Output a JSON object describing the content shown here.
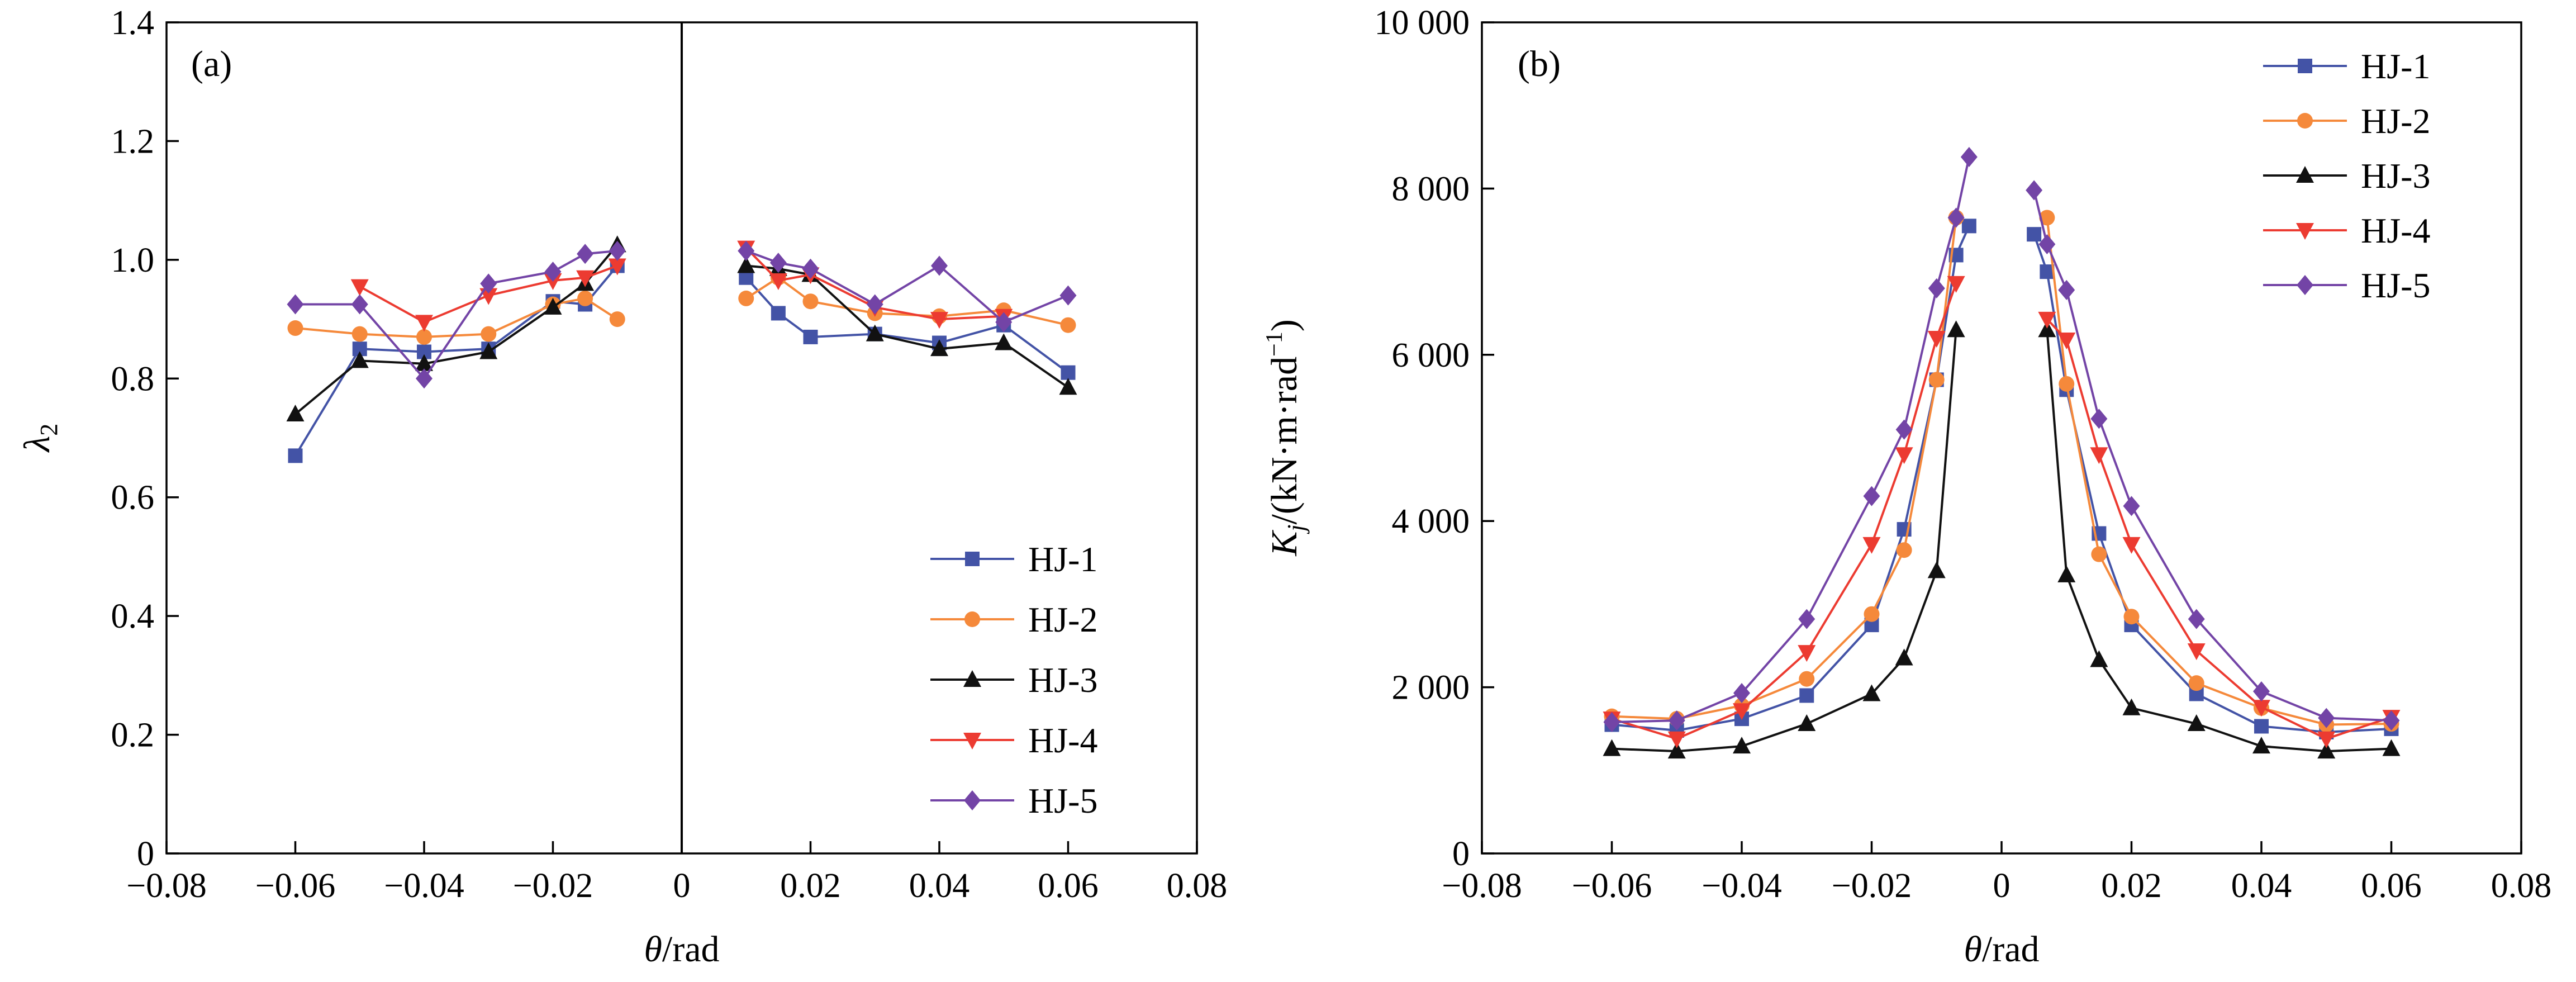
{
  "chart_data": [
    {
      "type": "line",
      "panel_label": "(a)",
      "title": "",
      "xlabel_var": "θ",
      "xlabel_unit": "/rad",
      "ylabel_var": "λ",
      "ylabel_sub": "2",
      "xlim": [
        -0.08,
        0.08
      ],
      "ylim": [
        0,
        1.4
      ],
      "xticks": [
        -0.08,
        -0.06,
        -0.04,
        -0.02,
        0,
        0.02,
        0.04,
        0.06,
        0.08
      ],
      "xtick_labels": [
        "−0.08",
        "−0.06",
        "−0.04",
        "−0.02",
        "0",
        "0.02",
        "0.04",
        "0.06",
        "0.08"
      ],
      "yticks": [
        0,
        0.2,
        0.4,
        0.6,
        0.8,
        1.0,
        1.2,
        1.4
      ],
      "ytick_labels": [
        "0",
        "0.2",
        "0.4",
        "0.6",
        "0.8",
        "1.0",
        "1.2",
        "1.4"
      ],
      "vertical_line_at": 0,
      "legend_position": "bottom-right",
      "series": [
        {
          "name": "HJ-1",
          "color": "#4353a6",
          "marker": "square",
          "neg": {
            "x": [
              -0.06,
              -0.05,
              -0.04,
              -0.03,
              -0.02,
              -0.015,
              -0.01
            ],
            "y": [
              0.67,
              0.85,
              0.845,
              0.85,
              0.93,
              0.925,
              0.99
            ]
          },
          "pos": {
            "x": [
              0.01,
              0.015,
              0.02,
              0.03,
              0.04,
              0.05,
              0.06
            ],
            "y": [
              0.97,
              0.91,
              0.87,
              0.875,
              0.86,
              0.89,
              0.81
            ]
          }
        },
        {
          "name": "HJ-2",
          "color": "#f5893b",
          "marker": "circle",
          "neg": {
            "x": [
              -0.06,
              -0.05,
              -0.04,
              -0.03,
              -0.02,
              -0.015,
              -0.01
            ],
            "y": [
              0.885,
              0.875,
              0.87,
              0.875,
              0.925,
              0.935,
              0.9
            ]
          },
          "pos": {
            "x": [
              0.01,
              0.015,
              0.02,
              0.03,
              0.04,
              0.05,
              0.06
            ],
            "y": [
              0.935,
              0.97,
              0.93,
              0.91,
              0.905,
              0.915,
              0.89
            ]
          }
        },
        {
          "name": "HJ-3",
          "color": "#111111",
          "marker": "triangle-up",
          "neg": {
            "x": [
              -0.06,
              -0.05,
              -0.04,
              -0.03,
              -0.02,
              -0.015,
              -0.01
            ],
            "y": [
              0.74,
              0.83,
              0.825,
              0.845,
              0.92,
              0.96,
              1.025
            ]
          },
          "pos": {
            "x": [
              0.01,
              0.015,
              0.02,
              0.03,
              0.04,
              0.05,
              0.06
            ],
            "y": [
              0.99,
              0.985,
              0.975,
              0.875,
              0.85,
              0.86,
              0.785
            ]
          }
        },
        {
          "name": "HJ-4",
          "color": "#ec3b31",
          "marker": "triangle-down",
          "neg": {
            "x": [
              -0.06,
              -0.05,
              -0.04,
              -0.03,
              -0.02,
              -0.015,
              -0.01
            ],
            "y": [
              null,
              0.955,
              0.895,
              0.94,
              0.965,
              0.97,
              0.99
            ]
          },
          "pos": {
            "x": [
              0.01,
              0.015,
              0.02,
              0.03,
              0.04,
              0.05,
              0.06
            ],
            "y": [
              1.02,
              0.965,
              0.975,
              0.92,
              0.9,
              0.905,
              null
            ]
          }
        },
        {
          "name": "HJ-5",
          "color": "#7344a6",
          "marker": "diamond",
          "neg": {
            "x": [
              -0.06,
              -0.05,
              -0.04,
              -0.03,
              -0.02,
              -0.015,
              -0.01
            ],
            "y": [
              0.925,
              0.925,
              0.8,
              0.96,
              0.98,
              1.01,
              1.015
            ]
          },
          "pos": {
            "x": [
              0.01,
              0.015,
              0.02,
              0.03,
              0.04,
              0.05,
              0.06
            ],
            "y": [
              1.015,
              0.995,
              0.985,
              0.925,
              0.99,
              0.895,
              0.94
            ]
          }
        }
      ]
    },
    {
      "type": "line",
      "panel_label": "(b)",
      "title": "",
      "xlabel_var": "θ",
      "xlabel_unit": "/rad",
      "ylabel_var": "K",
      "ylabel_sub": "j",
      "ylabel_unit_pre": "/(kN·m·rad",
      "ylabel_sup": "−1",
      "ylabel_unit_post": ")",
      "xlim": [
        -0.08,
        0.08
      ],
      "ylim": [
        0,
        10000
      ],
      "xticks": [
        -0.08,
        -0.06,
        -0.04,
        -0.02,
        0,
        0.02,
        0.04,
        0.06,
        0.08
      ],
      "xtick_labels": [
        "−0.08",
        "−0.06",
        "−0.04",
        "−0.02",
        "0",
        "0.02",
        "0.04",
        "0.06",
        "0.08"
      ],
      "yticks": [
        0,
        2000,
        4000,
        6000,
        8000,
        10000
      ],
      "ytick_labels": [
        "0",
        "2 000",
        "4 000",
        "6 000",
        "8 000",
        "10 000"
      ],
      "legend_position": "top-right",
      "series": [
        {
          "name": "HJ-1",
          "color": "#4353a6",
          "marker": "square",
          "neg": {
            "x": [
              -0.06,
              -0.05,
              -0.04,
              -0.03,
              -0.02,
              -0.015,
              -0.01,
              -0.007,
              -0.005
            ],
            "y": [
              1550,
              1480,
              1620,
              1900,
              2750,
              3900,
              5700,
              7200,
              7550
            ]
          },
          "pos": {
            "x": [
              0.005,
              0.007,
              0.01,
              0.015,
              0.02,
              0.03,
              0.04,
              0.05,
              0.06
            ],
            "y": [
              7450,
              7000,
              5580,
              3850,
              2750,
              1920,
              1530,
              1460,
              1500
            ]
          }
        },
        {
          "name": "HJ-2",
          "color": "#f5893b",
          "marker": "circle",
          "neg": {
            "x": [
              -0.06,
              -0.05,
              -0.04,
              -0.03,
              -0.02,
              -0.015,
              -0.01,
              -0.007,
              -0.005
            ],
            "y": [
              1650,
              1620,
              1780,
              2100,
              2880,
              3650,
              5700,
              7650,
              null
            ]
          },
          "pos": {
            "x": [
              0.005,
              0.007,
              0.01,
              0.015,
              0.02,
              0.03,
              0.04,
              0.05,
              0.06
            ],
            "y": [
              null,
              7650,
              5650,
              3600,
              2850,
              2050,
              1750,
              1550,
              1560
            ]
          }
        },
        {
          "name": "HJ-3",
          "color": "#111111",
          "marker": "triangle-up",
          "neg": {
            "x": [
              -0.06,
              -0.05,
              -0.04,
              -0.03,
              -0.02,
              -0.015,
              -0.01,
              -0.007,
              -0.005
            ],
            "y": [
              1260,
              1230,
              1290,
              1560,
              1920,
              2350,
              3400,
              6300,
              null
            ]
          },
          "pos": {
            "x": [
              0.005,
              0.007,
              0.01,
              0.015,
              0.02,
              0.03,
              0.04,
              0.05,
              0.06
            ],
            "y": [
              null,
              6300,
              3350,
              2330,
              1750,
              1560,
              1290,
              1230,
              1260
            ]
          }
        },
        {
          "name": "HJ-4",
          "color": "#ec3b31",
          "marker": "triangle-down",
          "neg": {
            "x": [
              -0.06,
              -0.05,
              -0.04,
              -0.03,
              -0.02,
              -0.015,
              -0.01,
              -0.007,
              -0.005
            ],
            "y": [
              1620,
              1380,
              1720,
              2420,
              3720,
              4800,
              6200,
              6860,
              null
            ]
          },
          "pos": {
            "x": [
              0.005,
              0.007,
              0.01,
              0.015,
              0.02,
              0.03,
              0.04,
              0.05,
              0.06
            ],
            "y": [
              null,
              6430,
              6180,
              4800,
              3720,
              2440,
              1760,
              1380,
              1640
            ]
          }
        },
        {
          "name": "HJ-5",
          "color": "#7344a6",
          "marker": "diamond",
          "neg": {
            "x": [
              -0.06,
              -0.05,
              -0.04,
              -0.03,
              -0.02,
              -0.015,
              -0.01,
              -0.007,
              -0.005
            ],
            "y": [
              1580,
              1600,
              1930,
              2820,
              4300,
              5100,
              6800,
              7650,
              8380
            ]
          },
          "pos": {
            "x": [
              0.005,
              0.007,
              0.01,
              0.015,
              0.02,
              0.03,
              0.04,
              0.05,
              0.06
            ],
            "y": [
              7980,
              7330,
              6780,
              5230,
              4180,
              2820,
              1950,
              1630,
              1600
            ]
          }
        }
      ]
    }
  ]
}
